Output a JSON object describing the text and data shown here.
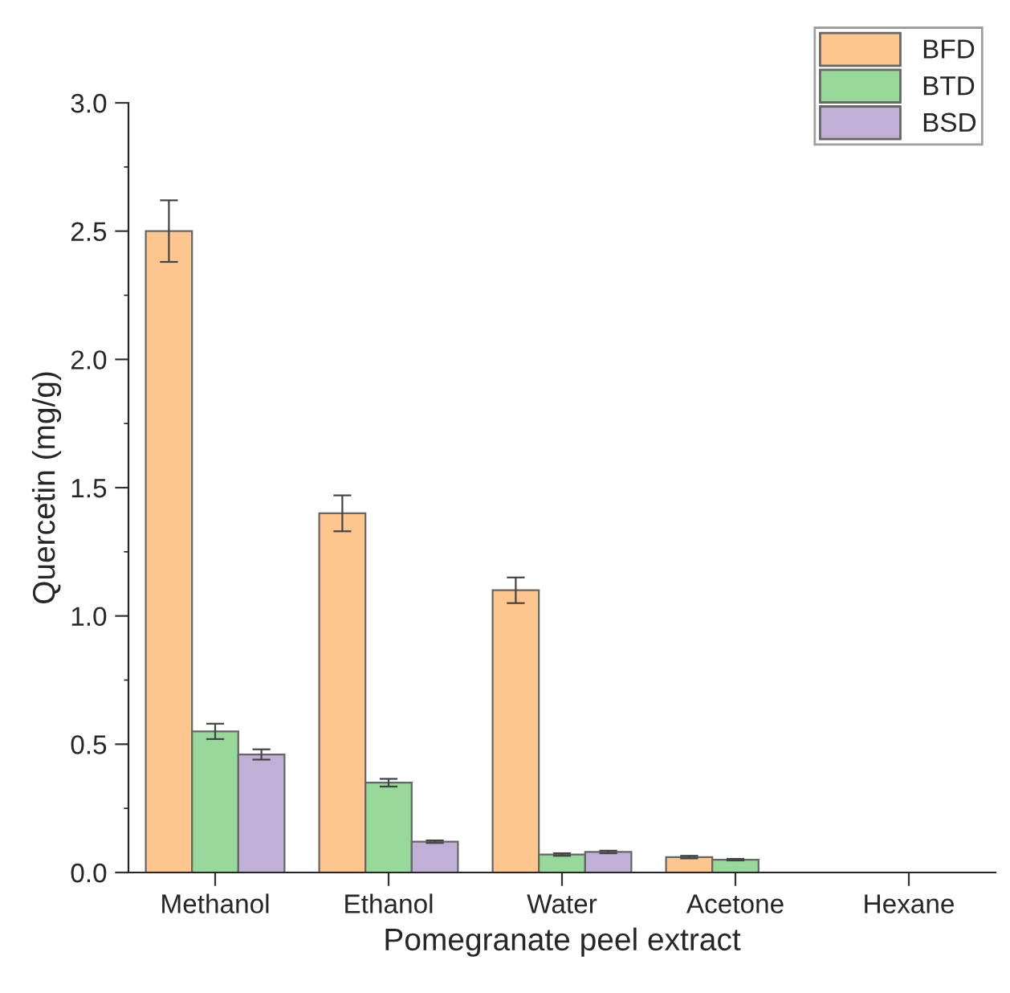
{
  "chart_data": {
    "type": "bar",
    "xlabel": "Pomegranate peel extract",
    "ylabel": "Quercetin (mg/g)",
    "categories": [
      "Methanol",
      "Ethanol",
      "Water",
      "Acetone",
      "Hexane"
    ],
    "series": [
      {
        "name": "BFD",
        "color": "#fdc68f",
        "values": [
          2.5,
          1.4,
          1.1,
          0.06,
          null
        ],
        "errors": [
          0.12,
          0.07,
          0.05,
          0.005,
          null
        ]
      },
      {
        "name": "BTD",
        "color": "#98d89a",
        "values": [
          0.55,
          0.35,
          0.07,
          0.05,
          null
        ],
        "errors": [
          0.03,
          0.015,
          0.005,
          0.003,
          null
        ]
      },
      {
        "name": "BSD",
        "color": "#c0b0d8",
        "values": [
          0.46,
          0.12,
          0.08,
          null,
          null
        ],
        "errors": [
          0.02,
          0.005,
          0.005,
          null,
          null
        ]
      }
    ],
    "ylim": [
      0,
      3.0
    ],
    "yticks": [
      {
        "value": 0,
        "label": "0.0"
      },
      0.5,
      {
        "value": 1,
        "label": "1.0"
      },
      1.5,
      {
        "value": 2,
        "label": "2.0"
      },
      2.5,
      {
        "value": 3,
        "label": "3.0"
      }
    ],
    "grid": false,
    "legend": "top right"
  }
}
